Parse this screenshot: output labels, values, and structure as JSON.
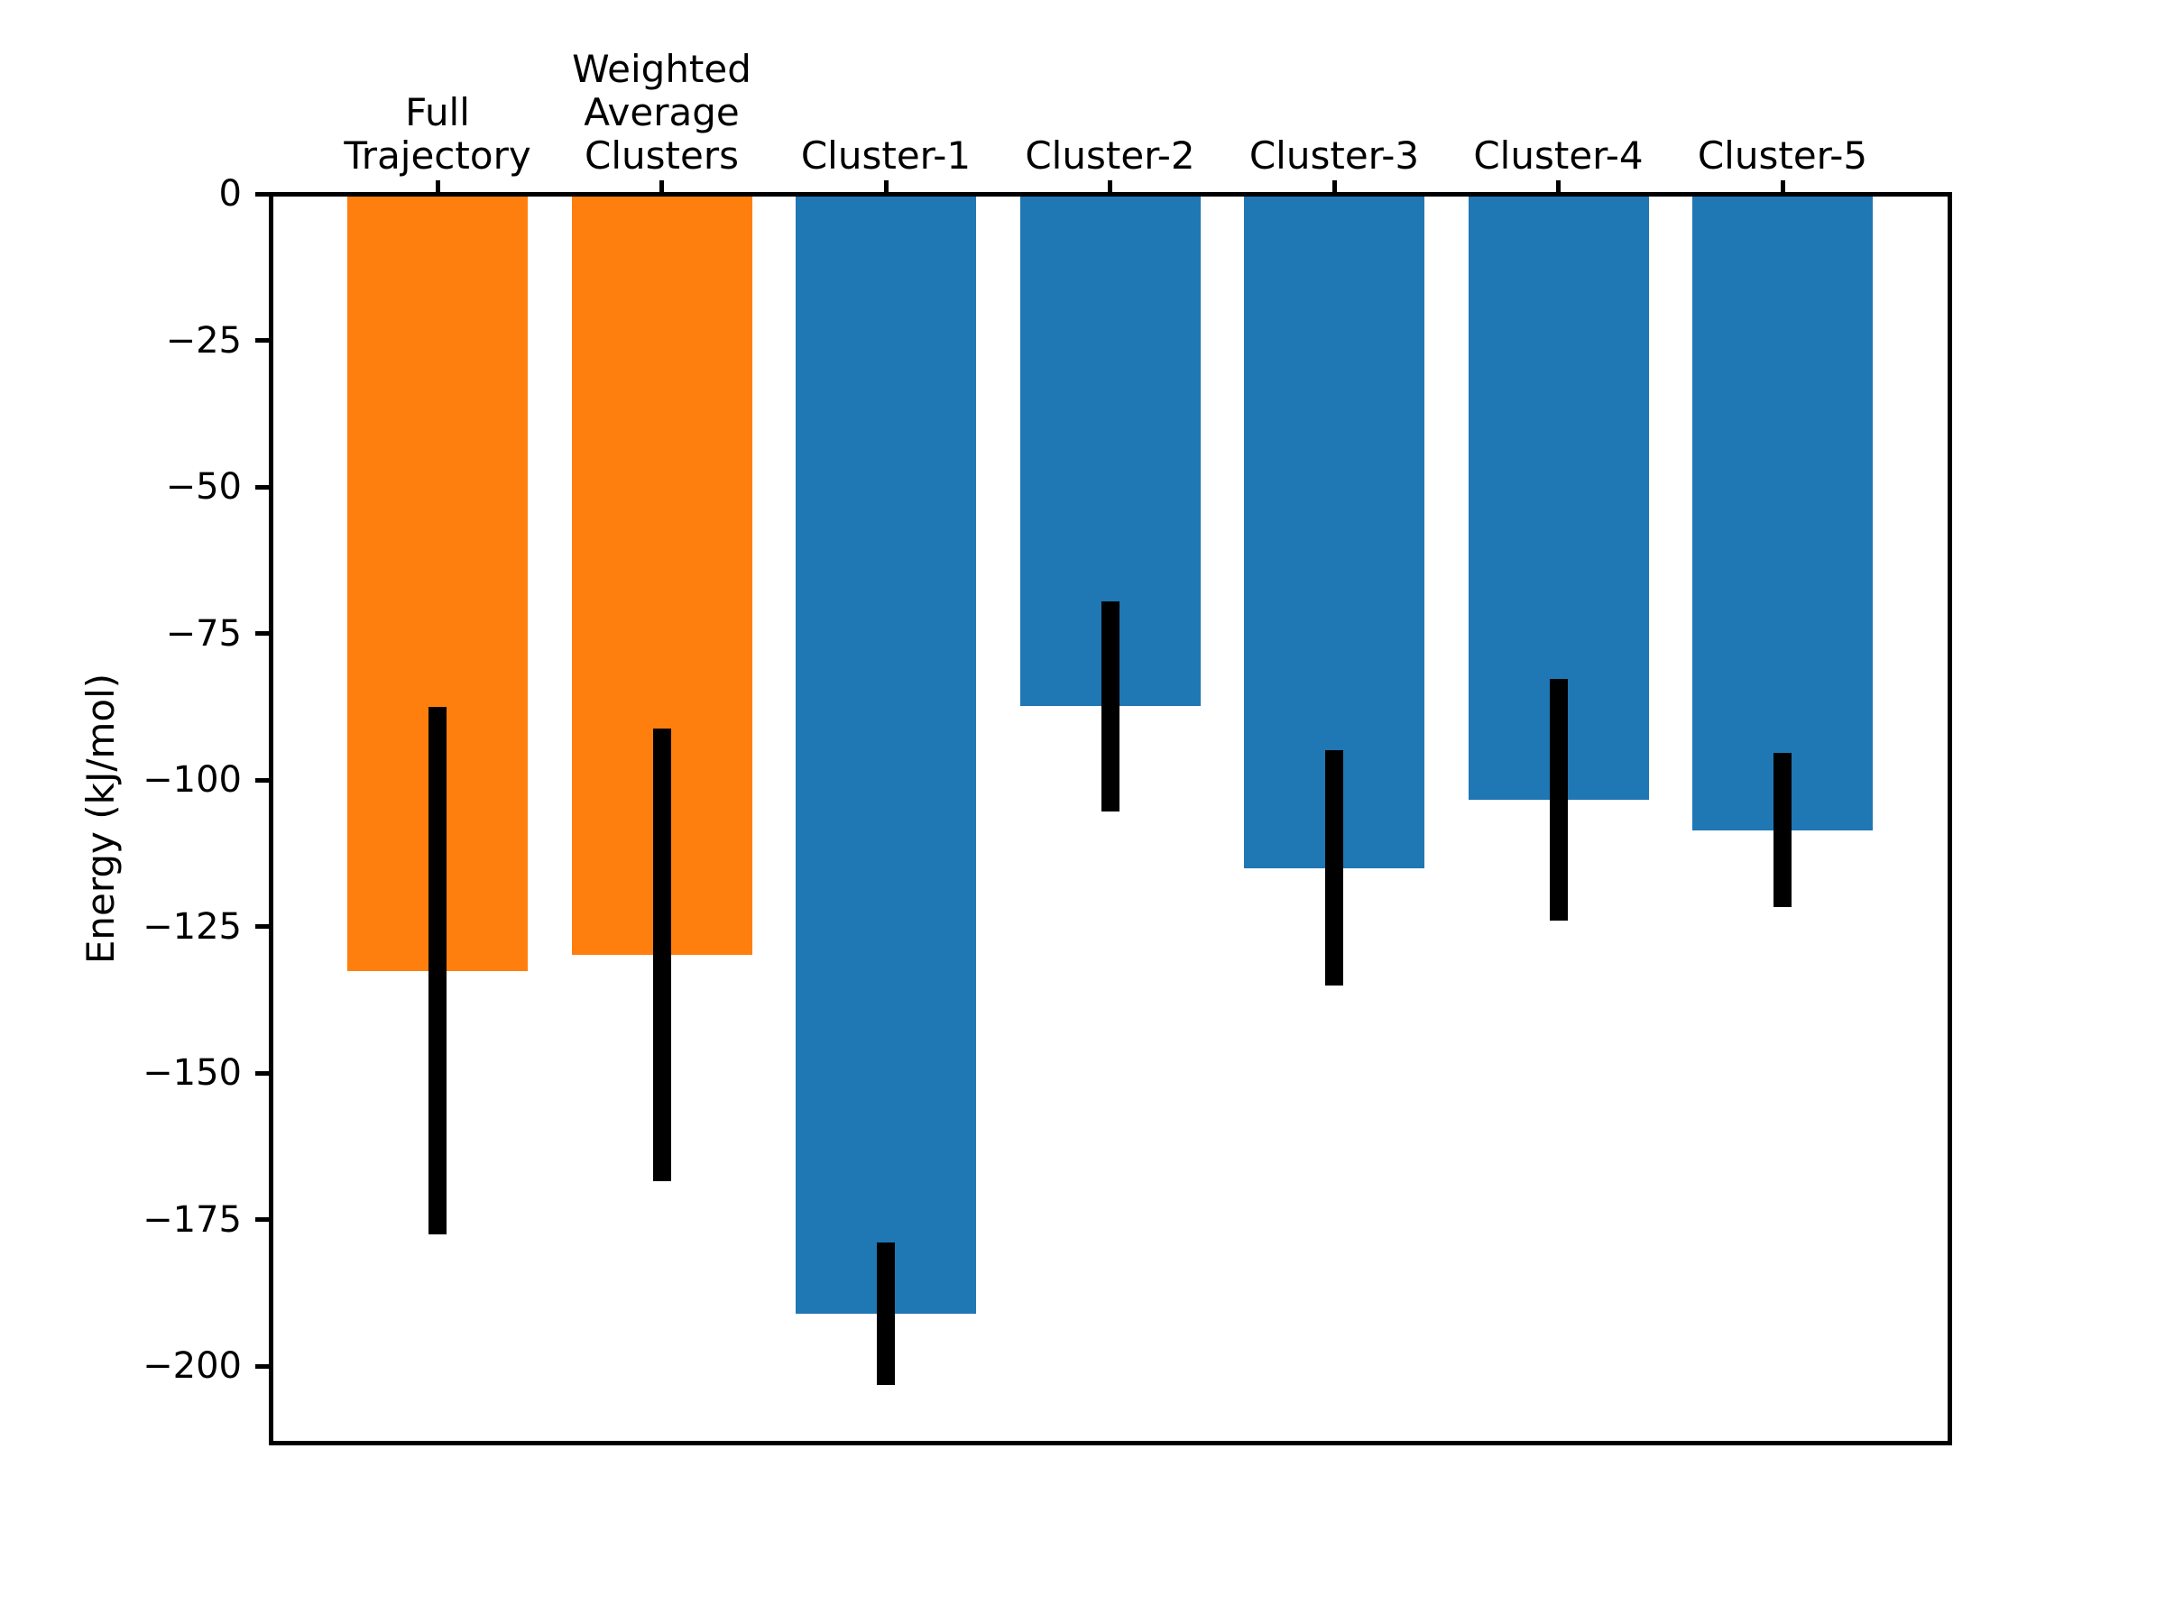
{
  "chart_data": {
    "type": "bar",
    "title": "",
    "xlabel": "",
    "ylabel": "Energy (kJ/mol)",
    "categories": [
      "Full\nTrajectory",
      "Weighted\nAverage\nClusters",
      "Cluster-1",
      "Cluster-2",
      "Cluster-3",
      "Cluster-4",
      "Cluster-5"
    ],
    "values": [
      -132.5,
      -129.8,
      -191.0,
      -87.4,
      -115.0,
      -103.4,
      -108.5
    ],
    "error_bars": [
      45.0,
      38.6,
      12.1,
      17.9,
      20.1,
      20.6,
      13.2
    ],
    "bar_colors": [
      "#ff7f0e",
      "#ff7f0e",
      "#1f77b4",
      "#1f77b4",
      "#1f77b4",
      "#1f77b4",
      "#1f77b4"
    ],
    "error_bar_color": "#000000",
    "axis_color": "#000000",
    "background_color": "#ffffff",
    "yticks": [
      0,
      -25,
      -50,
      -75,
      -100,
      -125,
      -150,
      -175,
      -200
    ],
    "ylim": [
      -213,
      0
    ],
    "x_tick_position": "top",
    "grid": false,
    "legend": null
  }
}
